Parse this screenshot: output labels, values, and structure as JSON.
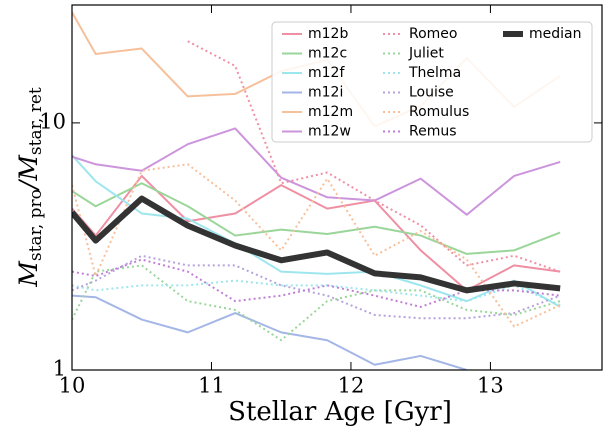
{
  "chart_data": {
    "type": "line",
    "xlabel": "Stellar Age [Gyr]",
    "ylabel": [
      "M",
      "star, pro",
      "/M",
      "star, ret"
    ],
    "x": [
      10,
      10.17,
      10.5,
      10.83,
      11.17,
      11.5,
      11.83,
      12.17,
      12.5,
      12.83,
      13.17,
      13.5
    ],
    "xlim": [
      10,
      13.8
    ],
    "xticks": [
      10,
      11,
      12,
      13
    ],
    "ylim": [
      1,
      30
    ],
    "yticks": [
      1,
      10
    ],
    "log_y": true,
    "legend": "upper right",
    "series": [
      {
        "name": "m12b",
        "color": "#ef8fa3",
        "style": "solid",
        "values": [
          4.5,
          3.5,
          6.1,
          4.0,
          4.3,
          5.6,
          4.5,
          4.85,
          3.05,
          2.1,
          2.65,
          2.5
        ]
      },
      {
        "name": "m12c",
        "color": "#9ad69a",
        "style": "solid",
        "values": [
          5.3,
          4.6,
          5.7,
          4.6,
          3.5,
          3.7,
          3.55,
          3.8,
          3.5,
          2.95,
          3.05,
          3.6
        ]
      },
      {
        "name": "m12f",
        "color": "#9de6ee",
        "style": "solid",
        "values": [
          7.4,
          5.8,
          4.3,
          4.1,
          3.25,
          2.5,
          2.45,
          2.5,
          2.2,
          1.9,
          2.3,
          1.8
        ]
      },
      {
        "name": "m12i",
        "color": "#a3b6e6",
        "style": "solid",
        "values": [
          2.0,
          1.97,
          1.6,
          1.42,
          1.7,
          1.42,
          1.32,
          1.05,
          1.14,
          1.0,
          null,
          null
        ]
      },
      {
        "name": "m12m",
        "color": "#f6c09a",
        "style": "solid",
        "values": [
          28,
          19,
          20,
          12.8,
          13.1,
          16.2,
          18,
          9.7,
          11.7,
          18.3,
          11.6,
          15.5
        ]
      },
      {
        "name": "m12w",
        "color": "#cc94dd",
        "style": "solid",
        "values": [
          7.3,
          6.8,
          6.4,
          8.2,
          9.5,
          6.0,
          5.0,
          4.85,
          5.95,
          4.25,
          6.1,
          6.95
        ]
      },
      {
        "name": "Romeo",
        "color": "#ef8fa3",
        "style": "dotted",
        "values": [
          null,
          null,
          null,
          21.4,
          17,
          5.7,
          6.3,
          4.85,
          3.85,
          2.65,
          2.9,
          2.5
        ]
      },
      {
        "name": "Juliet",
        "color": "#9ad69a",
        "style": "dotted",
        "values": [
          1.6,
          2.5,
          2.65,
          1.9,
          1.75,
          1.32,
          1.9,
          2.1,
          2.1,
          1.75,
          1.67,
          1.9
        ]
      },
      {
        "name": "Thelma",
        "color": "#9de6ee",
        "style": "dotted",
        "values": [
          2.2,
          2.1,
          2.2,
          2.2,
          2.3,
          2.2,
          2.2,
          2.1,
          2.0,
          1.9,
          2.2,
          1.83
        ]
      },
      {
        "name": "Louise",
        "color": "#b5a3dd",
        "style": "dotted",
        "values": [
          2.1,
          2.3,
          2.9,
          2.65,
          2.65,
          2.2,
          2.0,
          1.67,
          1.62,
          1.62,
          1.7,
          2.0
        ]
      },
      {
        "name": "Romulus",
        "color": "#f6c09a",
        "style": "dotted",
        "values": [
          5.6,
          2.4,
          6.4,
          6.8,
          4.85,
          3.05,
          5.95,
          2.9,
          3.65,
          2.8,
          1.5,
          1.83
        ]
      },
      {
        "name": "Remus",
        "color": "#c07fd6",
        "style": "dotted",
        "values": [
          2.5,
          2.4,
          2.8,
          2.5,
          1.9,
          2.0,
          2.2,
          2.0,
          1.8,
          2.1,
          2.1,
          2.0
        ]
      },
      {
        "name": "median",
        "color": "#333333",
        "style": "thick",
        "values": [
          4.34,
          3.34,
          4.94,
          3.84,
          3.19,
          2.78,
          2.99,
          2.46,
          2.37,
          2.1,
          2.24,
          2.14
        ]
      }
    ]
  }
}
